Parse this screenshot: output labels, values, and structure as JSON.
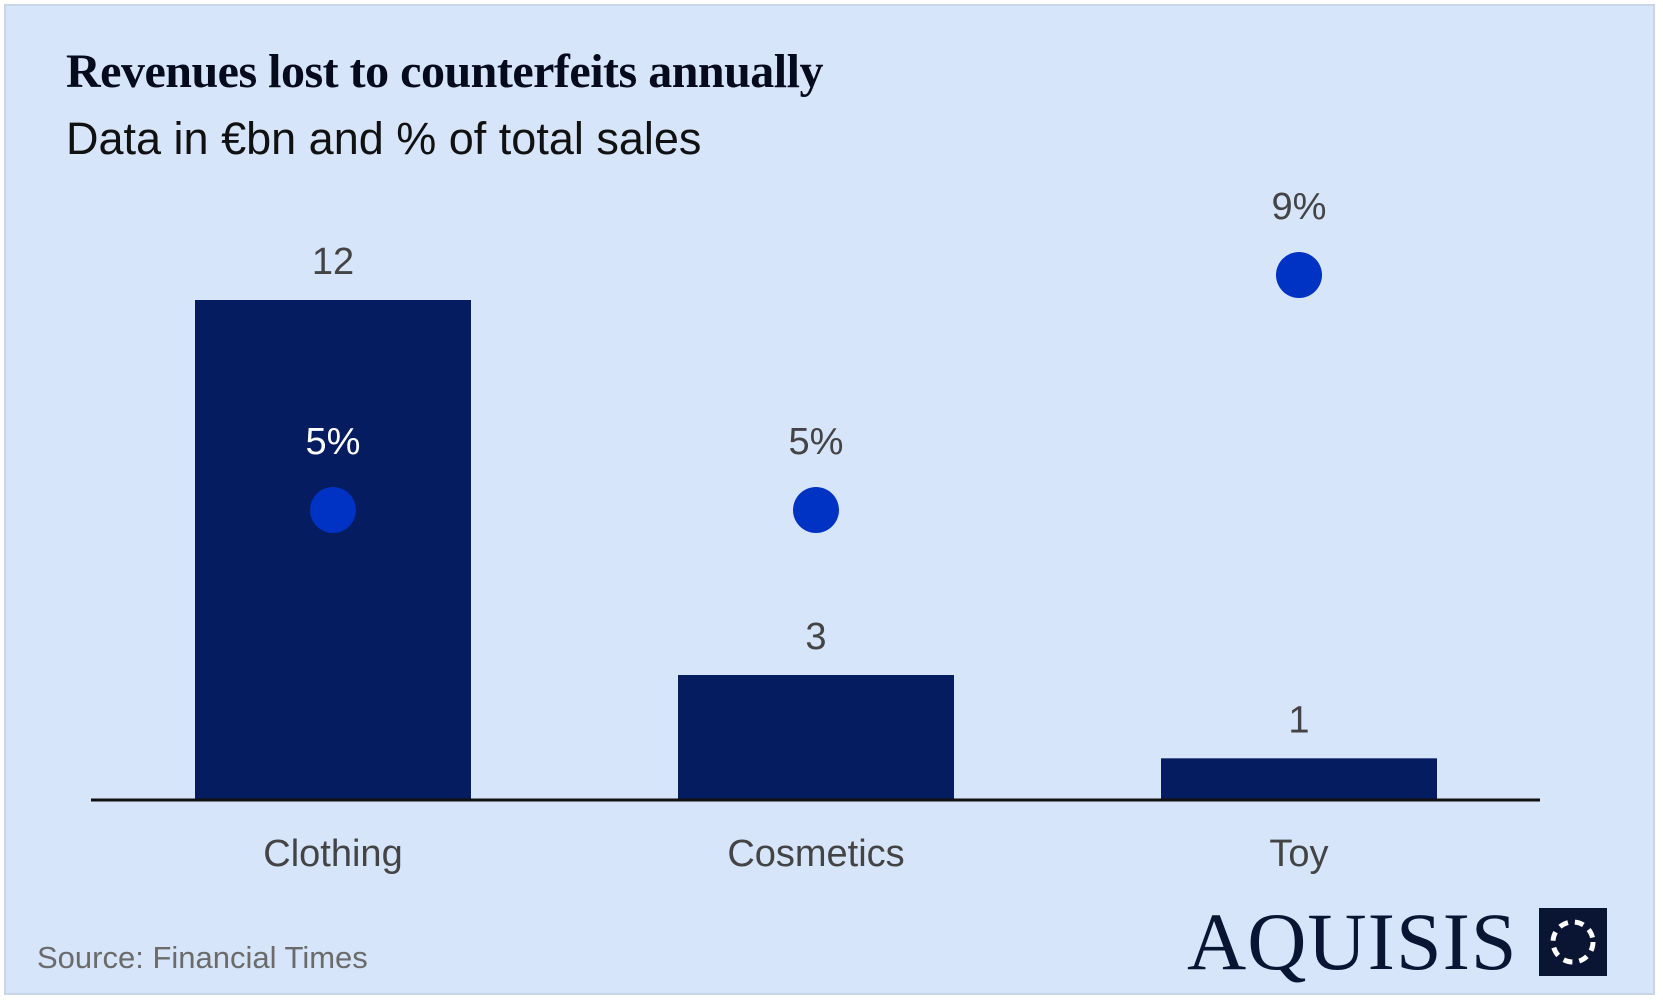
{
  "title": "Revenues lost to counterfeits annually",
  "subtitle": "Data in €bn and % of total sales",
  "source": "Source: Financial Times",
  "logo": {
    "text": "AQUISIS",
    "icon": "dashed-circle-square-icon"
  },
  "colors": {
    "background": "#d6e5fa",
    "bar": "#061c60",
    "dot": "#0033c4",
    "axis": "#111111",
    "label": "#444444"
  },
  "chart_data": {
    "type": "bar",
    "title": "Revenues lost to counterfeits annually",
    "subtitle": "Data in €bn and % of total sales",
    "categories": [
      "Clothing",
      "Cosmetics",
      "Toy"
    ],
    "series": [
      {
        "name": "Revenue lost (€bn)",
        "kind": "bar",
        "values": [
          12,
          3,
          1
        ],
        "labels": [
          "12",
          "3",
          "1"
        ]
      },
      {
        "name": "% of total sales",
        "kind": "dot",
        "values": [
          5,
          5,
          9
        ],
        "labels": [
          "5%",
          "5%",
          "9%"
        ]
      }
    ],
    "xlabel": "",
    "ylabel": "",
    "ylim_bar": [
      0,
      12
    ],
    "ylim_pct": [
      0,
      9
    ],
    "grid": false,
    "legend": "none"
  }
}
